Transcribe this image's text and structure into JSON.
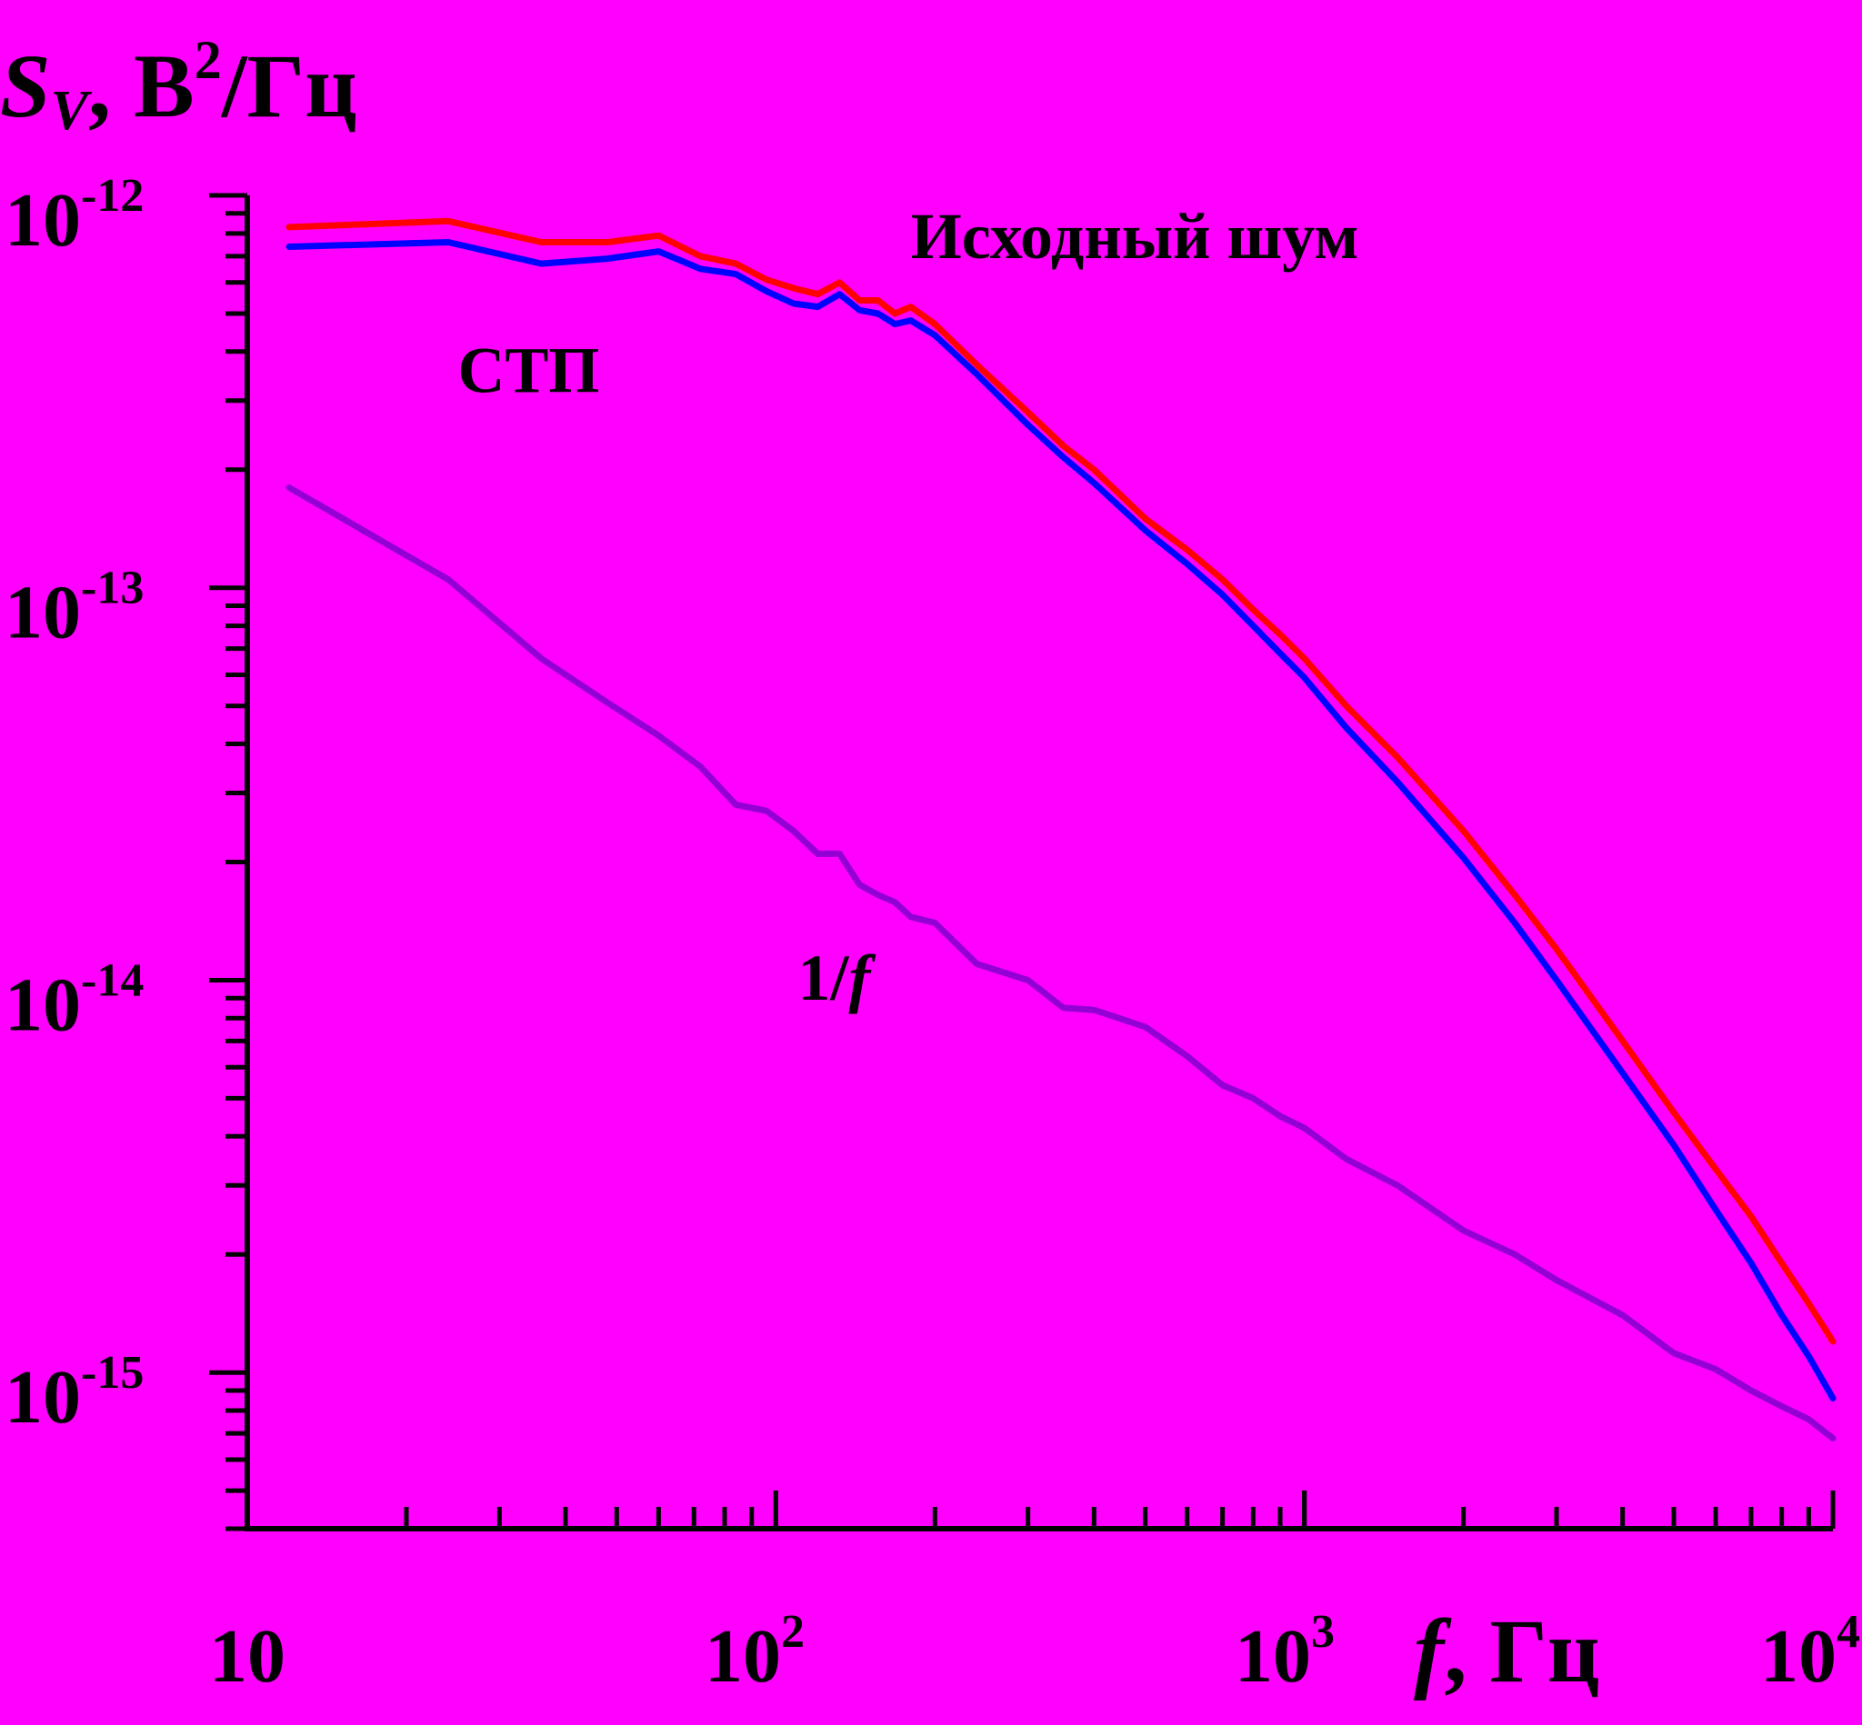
{
  "chart_data": {
    "type": "line",
    "x_scale": "log",
    "y_scale": "log",
    "xlim": [
      10,
      10000
    ],
    "ylim": [
      4e-16,
      1e-12
    ],
    "x_ticks": [
      {
        "label": "10",
        "sup": ""
      },
      {
        "label": "10",
        "sup": "2"
      },
      {
        "label": "10",
        "sup": "3"
      },
      {
        "label": "10",
        "sup": "4"
      }
    ],
    "y_ticks": [
      {
        "label": "10",
        "sup": "-12"
      },
      {
        "label": "10",
        "sup": "-13"
      },
      {
        "label": "10",
        "sup": "-14"
      },
      {
        "label": "10",
        "sup": "-15"
      }
    ],
    "ylabel": {
      "main": "S",
      "sub": "V",
      "unit": ", В",
      "sup": "2",
      "unit2": "/Гц"
    },
    "xlabel": {
      "main": "f",
      "unit": ", Гц"
    },
    "series": [
      {
        "name": "Исходный шум",
        "color": "#FF0000",
        "x": [
          12,
          24,
          36,
          48,
          60,
          72,
          84,
          96,
          108,
          120,
          132,
          144,
          156,
          168,
          180,
          200,
          240,
          300,
          350,
          400,
          500,
          600,
          700,
          800,
          900,
          1000,
          1200,
          1500,
          2000,
          2500,
          3000,
          4000,
          5000,
          6000,
          7000,
          8000,
          9000,
          10000
        ],
        "y": [
          8.3e-13,
          8.6e-13,
          7.6e-13,
          7.6e-13,
          7.9e-13,
          7e-13,
          6.7e-13,
          6.1e-13,
          5.8e-13,
          5.6e-13,
          6e-13,
          5.4e-13,
          5.4e-13,
          5e-13,
          5.2e-13,
          4.7e-13,
          3.7e-13,
          2.8e-13,
          2.3e-13,
          2e-13,
          1.5e-13,
          1.25e-13,
          1.05e-13,
          8.8e-14,
          7.6e-14,
          6.6e-14,
          5e-14,
          3.7e-14,
          2.4e-14,
          1.65e-14,
          1.2e-14,
          7e-15,
          4.6e-15,
          3.3e-15,
          2.5e-15,
          1.9e-15,
          1.5e-15,
          1.2e-15
        ]
      },
      {
        "name": "СТП",
        "color": "#0000FF",
        "x": [
          12,
          24,
          36,
          48,
          60,
          72,
          84,
          96,
          108,
          120,
          132,
          144,
          156,
          168,
          180,
          200,
          240,
          300,
          350,
          400,
          500,
          600,
          700,
          800,
          900,
          1000,
          1200,
          1500,
          2000,
          2500,
          3000,
          4000,
          5000,
          6000,
          7000,
          8000,
          9000,
          10000
        ],
        "y": [
          7.4e-13,
          7.6e-13,
          6.7e-13,
          6.9e-13,
          7.2e-13,
          6.5e-13,
          6.3e-13,
          5.7e-13,
          5.3e-13,
          5.2e-13,
          5.6e-13,
          5.1e-13,
          5e-13,
          4.7e-13,
          4.8e-13,
          4.4e-13,
          3.5e-13,
          2.6e-13,
          2.15e-13,
          1.85e-13,
          1.4e-13,
          1.15e-13,
          9.6e-14,
          8e-14,
          6.8e-14,
          5.9e-14,
          4.4e-14,
          3.2e-14,
          2.05e-14,
          1.4e-14,
          1e-14,
          5.8e-15,
          3.8e-15,
          2.6e-15,
          1.9e-15,
          1.4e-15,
          1.1e-15,
          8.6e-16
        ]
      },
      {
        "name": "1/f",
        "color": "#9400D3",
        "x": [
          12,
          24,
          36,
          48,
          60,
          72,
          84,
          96,
          108,
          120,
          132,
          144,
          156,
          168,
          180,
          200,
          240,
          300,
          350,
          400,
          500,
          600,
          700,
          800,
          900,
          1000,
          1200,
          1500,
          2000,
          2500,
          3000,
          4000,
          5000,
          6000,
          7000,
          8000,
          9000,
          10000
        ],
        "y": [
          1.8e-13,
          1.05e-13,
          6.6e-14,
          5.1e-14,
          4.2e-14,
          3.5e-14,
          2.8e-14,
          2.7e-14,
          2.4e-14,
          2.1e-14,
          2.1e-14,
          1.75e-14,
          1.65e-14,
          1.58e-14,
          1.45e-14,
          1.4e-14,
          1.1e-14,
          1e-14,
          8.5e-15,
          8.4e-15,
          7.6e-15,
          6.4e-15,
          5.4e-15,
          5e-15,
          4.5e-15,
          4.2e-15,
          3.5e-15,
          3e-15,
          2.3e-15,
          2e-15,
          1.72e-15,
          1.4e-15,
          1.12e-15,
          1.02e-15,
          9e-16,
          8.2e-16,
          7.6e-16,
          6.8e-16
        ]
      }
    ],
    "annotations": [
      {
        "text": "Исходный шум",
        "x": 180,
        "y": 7.9e-13
      },
      {
        "text": "СТП",
        "x": 25,
        "y": 3.6e-13
      },
      {
        "text": "1/",
        "italic_part": "f",
        "x": 110,
        "y": 1.02e-14
      }
    ]
  }
}
